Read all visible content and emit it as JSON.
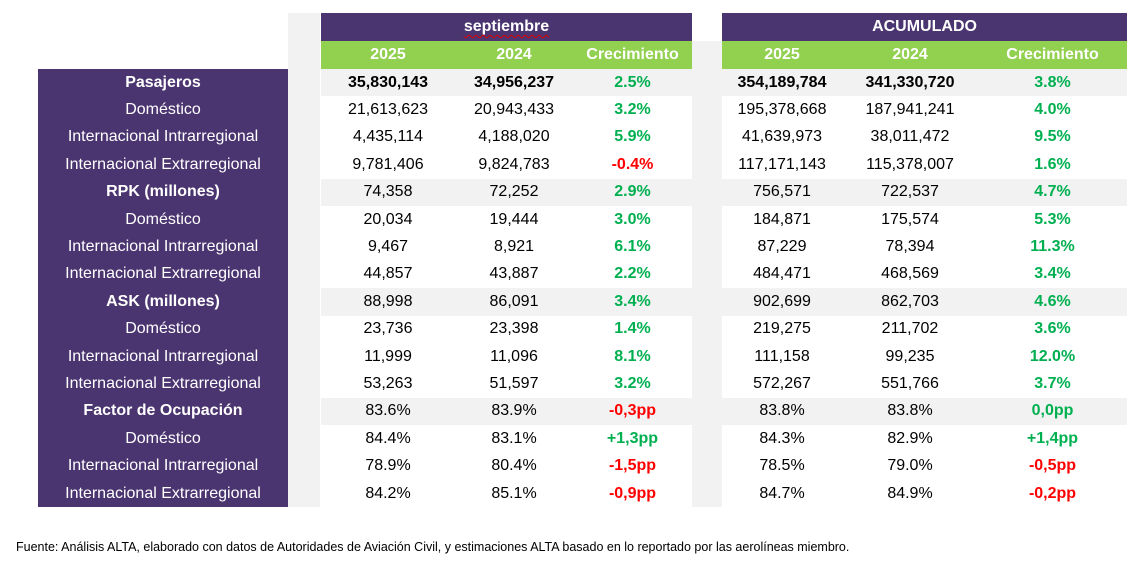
{
  "header": {
    "period": "septiembre",
    "cumulative": "ACUMULADO"
  },
  "columns": {
    "period": [
      "2025",
      "2024",
      "Crecimiento"
    ],
    "cumulative": [
      "2025",
      "2024",
      "Crecimiento"
    ]
  },
  "rows": [
    {
      "label": "Pasajeros",
      "main": true,
      "bold": true,
      "s": [
        "35,830,143",
        "34,956,237",
        "2.5%"
      ],
      "a": [
        "354,189,784",
        "341,330,720",
        "3.8%"
      ],
      "sc": "g",
      "ac": "g"
    },
    {
      "label": "Doméstico",
      "s": [
        "21,613,623",
        "20,943,433",
        "3.2%"
      ],
      "a": [
        "195,378,668",
        "187,941,241",
        "4.0%"
      ],
      "sc": "g",
      "ac": "g"
    },
    {
      "label": "Internacional Intrarregional",
      "s": [
        "4,435,114",
        "4,188,020",
        "5.9%"
      ],
      "a": [
        "41,639,973",
        "38,011,472",
        "9.5%"
      ],
      "sc": "g",
      "ac": "g"
    },
    {
      "label": "Internacional Extrarregional",
      "s": [
        "9,781,406",
        "9,824,783",
        "-0.4%"
      ],
      "a": [
        "117,171,143",
        "115,378,007",
        "1.6%"
      ],
      "sc": "r",
      "ac": "g"
    },
    {
      "label": "RPK (millones)",
      "main": true,
      "s": [
        "74,358",
        "72,252",
        "2.9%"
      ],
      "a": [
        "756,571",
        "722,537",
        "4.7%"
      ],
      "sc": "g",
      "ac": "g"
    },
    {
      "label": "Doméstico",
      "s": [
        "20,034",
        "19,444",
        "3.0%"
      ],
      "a": [
        "184,871",
        "175,574",
        "5.3%"
      ],
      "sc": "g",
      "ac": "g"
    },
    {
      "label": "Internacional Intrarregional",
      "s": [
        "9,467",
        "8,921",
        "6.1%"
      ],
      "a": [
        "87,229",
        "78,394",
        "11.3%"
      ],
      "sc": "g",
      "ac": "g"
    },
    {
      "label": "Internacional Extrarregional",
      "s": [
        "44,857",
        "43,887",
        "2.2%"
      ],
      "a": [
        "484,471",
        "468,569",
        "3.4%"
      ],
      "sc": "g",
      "ac": "g"
    },
    {
      "label": "ASK (millones)",
      "main": true,
      "s": [
        "88,998",
        "86,091",
        "3.4%"
      ],
      "a": [
        "902,699",
        "862,703",
        "4.6%"
      ],
      "sc": "g",
      "ac": "g"
    },
    {
      "label": "Doméstico",
      "s": [
        "23,736",
        "23,398",
        "1.4%"
      ],
      "a": [
        "219,275",
        "211,702",
        "3.6%"
      ],
      "sc": "g",
      "ac": "g"
    },
    {
      "label": "Internacional Intrarregional",
      "s": [
        "11,999",
        "11,096",
        "8.1%"
      ],
      "a": [
        "111,158",
        "99,235",
        "12.0%"
      ],
      "sc": "g",
      "ac": "g"
    },
    {
      "label": "Internacional Extrarregional",
      "s": [
        "53,263",
        "51,597",
        "3.2%"
      ],
      "a": [
        "572,267",
        "551,766",
        "3.7%"
      ],
      "sc": "g",
      "ac": "g"
    },
    {
      "label": "Factor de Ocupación",
      "main": true,
      "s": [
        "83.6%",
        "83.9%",
        "-0,3pp"
      ],
      "a": [
        "83.8%",
        "83.8%",
        "0,0pp"
      ],
      "sc": "r",
      "ac": "g"
    },
    {
      "label": "Doméstico",
      "s": [
        "84.4%",
        "83.1%",
        "+1,3pp"
      ],
      "a": [
        "84.3%",
        "82.9%",
        "+1,4pp"
      ],
      "sc": "g",
      "ac": "g"
    },
    {
      "label": "Internacional Intrarregional",
      "s": [
        "78.9%",
        "80.4%",
        "-1,5pp"
      ],
      "a": [
        "78.5%",
        "79.0%",
        "-0,5pp"
      ],
      "sc": "r",
      "ac": "r"
    },
    {
      "label": "Internacional Extrarregional",
      "s": [
        "84.2%",
        "85.1%",
        "-0,9pp"
      ],
      "a": [
        "84.7%",
        "84.9%",
        "-0,2pp"
      ],
      "sc": "r",
      "ac": "r"
    }
  ],
  "colors": {
    "purple": "#4b3570",
    "green_header": "#92d050",
    "positive": "#00b050",
    "negative": "#ff0000",
    "band": "#f2f2f2"
  },
  "source": "Fuente: Análisis ALTA, elaborado con datos de Autoridades de Aviación Civil,  y estimaciones ALTA basado en lo reportado por las aerolíneas miembro."
}
